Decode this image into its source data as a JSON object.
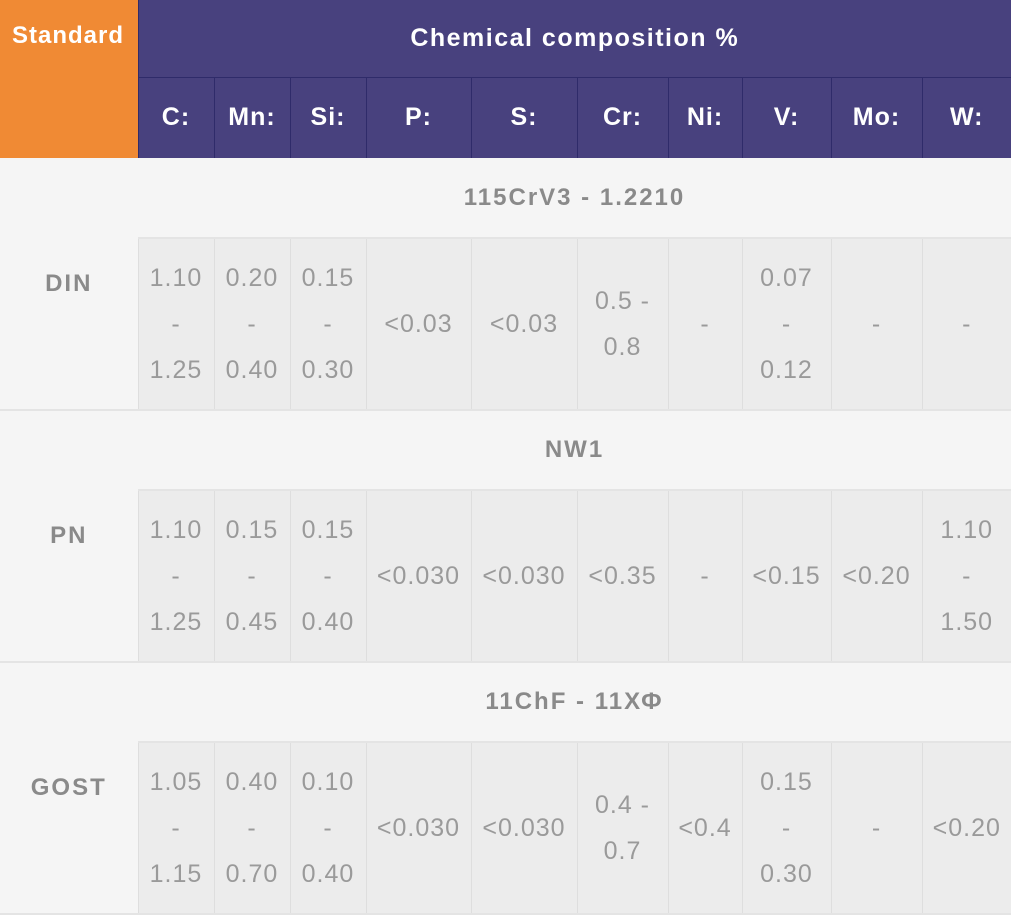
{
  "header": {
    "standard_label": "Standard",
    "chemical_label": "Chemical composition %",
    "elements": [
      "C:",
      "Mn:",
      "Si:",
      "P:",
      "S:",
      "Cr:",
      "Ni:",
      "V:",
      "Mo:",
      "W:"
    ]
  },
  "colors": {
    "standard_header_bg": "#f08a34",
    "chem_header_bg": "#48417e",
    "row_bg": "#f5f5f5",
    "value_bg": "#ececec",
    "text_gray": "#8a8a8a"
  },
  "rows": [
    {
      "standard": "DIN",
      "grade": "115CrV3 - 1.2210",
      "values": [
        "1.10\n-\n1.25",
        "0.20\n-\n0.40",
        "0.15\n-\n0.30",
        "<0.03",
        "<0.03",
        "0.5 -\n0.8",
        "-",
        "0.07\n-\n0.12",
        "-",
        "-"
      ]
    },
    {
      "standard": "PN",
      "grade": "NW1",
      "values": [
        "1.10\n-\n1.25",
        "0.15\n-\n0.45",
        "0.15\n-\n0.40",
        "<0.030",
        "<0.030",
        "<0.35",
        "-",
        "<0.15",
        "<0.20",
        "1.10\n-\n1.50"
      ]
    },
    {
      "standard": "GOST",
      "grade": "11ChF - 11ХФ",
      "values": [
        "1.05\n-\n1.15",
        "0.40\n-\n0.70",
        "0.10\n-\n0.40",
        "<0.030",
        "<0.030",
        "0.4 -\n0.7",
        "<0.4",
        "0.15\n-\n0.30",
        "-",
        "<0.20"
      ]
    }
  ]
}
